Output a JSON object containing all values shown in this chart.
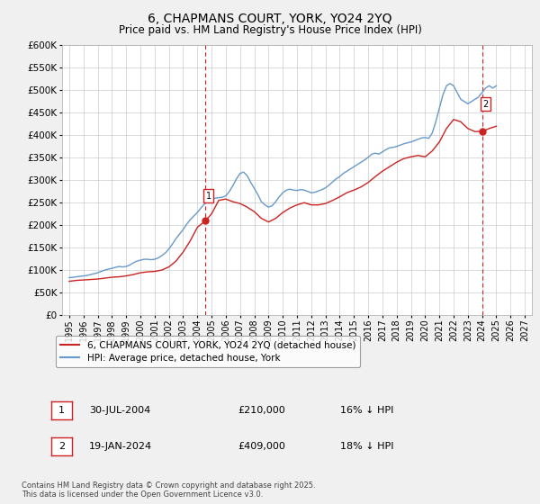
{
  "title": "6, CHAPMANS COURT, YORK, YO24 2YQ",
  "subtitle": "Price paid vs. HM Land Registry's House Price Index (HPI)",
  "title_fontsize": 10,
  "subtitle_fontsize": 8.5,
  "background_color": "#f0f0f0",
  "plot_background_color": "#ffffff",
  "grid_color": "#cccccc",
  "ylim": [
    0,
    600000
  ],
  "yticks": [
    0,
    50000,
    100000,
    150000,
    200000,
    250000,
    300000,
    350000,
    400000,
    450000,
    500000,
    550000,
    600000
  ],
  "xlim_start": 1994.5,
  "xlim_end": 2027.5,
  "xticks": [
    1995,
    1996,
    1997,
    1998,
    1999,
    2000,
    2001,
    2002,
    2003,
    2004,
    2005,
    2006,
    2007,
    2008,
    2009,
    2010,
    2011,
    2012,
    2013,
    2014,
    2015,
    2016,
    2017,
    2018,
    2019,
    2020,
    2021,
    2022,
    2023,
    2024,
    2025,
    2026,
    2027
  ],
  "hpi_color": "#6699cc",
  "price_color": "#cc2222",
  "marker_color": "#cc2222",
  "vline_color": "#cc2222",
  "marker1_x": 2004.58,
  "marker1_y": 210000,
  "marker2_x": 2024.05,
  "marker2_y": 409000,
  "sale1_label": "1",
  "sale2_label": "2",
  "sale1_date": "30-JUL-2004",
  "sale1_price": "£210,000",
  "sale1_hpi": "16% ↓ HPI",
  "sale2_date": "19-JAN-2024",
  "sale2_price": "£409,000",
  "sale2_hpi": "18% ↓ HPI",
  "legend_label1": "6, CHAPMANS COURT, YORK, YO24 2YQ (detached house)",
  "legend_label2": "HPI: Average price, detached house, York",
  "footer": "Contains HM Land Registry data © Crown copyright and database right 2025.\nThis data is licensed under the Open Government Licence v3.0.",
  "hpi_data_x": [
    1995.0,
    1995.25,
    1995.5,
    1995.75,
    1996.0,
    1996.25,
    1996.5,
    1996.75,
    1997.0,
    1997.25,
    1997.5,
    1997.75,
    1998.0,
    1998.25,
    1998.5,
    1998.75,
    1999.0,
    1999.25,
    1999.5,
    1999.75,
    2000.0,
    2000.25,
    2000.5,
    2000.75,
    2001.0,
    2001.25,
    2001.5,
    2001.75,
    2002.0,
    2002.25,
    2002.5,
    2002.75,
    2003.0,
    2003.25,
    2003.5,
    2003.75,
    2004.0,
    2004.25,
    2004.5,
    2004.75,
    2005.0,
    2005.25,
    2005.5,
    2005.75,
    2006.0,
    2006.25,
    2006.5,
    2006.75,
    2007.0,
    2007.25,
    2007.5,
    2007.75,
    2008.0,
    2008.25,
    2008.5,
    2008.75,
    2009.0,
    2009.25,
    2009.5,
    2009.75,
    2010.0,
    2010.25,
    2010.5,
    2010.75,
    2011.0,
    2011.25,
    2011.5,
    2011.75,
    2012.0,
    2012.25,
    2012.5,
    2012.75,
    2013.0,
    2013.25,
    2013.5,
    2013.75,
    2014.0,
    2014.25,
    2014.5,
    2014.75,
    2015.0,
    2015.25,
    2015.5,
    2015.75,
    2016.0,
    2016.25,
    2016.5,
    2016.75,
    2017.0,
    2017.25,
    2017.5,
    2017.75,
    2018.0,
    2018.25,
    2018.5,
    2018.75,
    2019.0,
    2019.25,
    2019.5,
    2019.75,
    2020.0,
    2020.25,
    2020.5,
    2020.75,
    2021.0,
    2021.25,
    2021.5,
    2021.75,
    2022.0,
    2022.25,
    2022.5,
    2022.75,
    2023.0,
    2023.25,
    2023.5,
    2023.75,
    2024.0,
    2024.25,
    2024.5,
    2024.75,
    2025.0
  ],
  "hpi_data_y": [
    83000,
    84000,
    85000,
    86000,
    87000,
    88000,
    90000,
    92000,
    94000,
    97000,
    100000,
    102000,
    104000,
    106000,
    108000,
    107000,
    108000,
    111000,
    116000,
    120000,
    122000,
    124000,
    124000,
    123000,
    124000,
    127000,
    132000,
    138000,
    147000,
    158000,
    170000,
    180000,
    190000,
    202000,
    212000,
    220000,
    228000,
    238000,
    247000,
    254000,
    258000,
    260000,
    261000,
    262000,
    265000,
    275000,
    288000,
    303000,
    315000,
    318000,
    310000,
    295000,
    282000,
    268000,
    252000,
    245000,
    240000,
    243000,
    252000,
    263000,
    272000,
    278000,
    280000,
    278000,
    277000,
    279000,
    278000,
    275000,
    272000,
    273000,
    276000,
    279000,
    283000,
    289000,
    296000,
    303000,
    308000,
    315000,
    320000,
    325000,
    330000,
    335000,
    340000,
    345000,
    351000,
    358000,
    360000,
    358000,
    363000,
    368000,
    372000,
    373000,
    375000,
    378000,
    381000,
    383000,
    385000,
    388000,
    391000,
    394000,
    395000,
    393000,
    405000,
    430000,
    460000,
    490000,
    510000,
    515000,
    510000,
    495000,
    480000,
    475000,
    470000,
    475000,
    480000,
    485000,
    495000,
    505000,
    510000,
    505000,
    510000
  ],
  "price_data_x": [
    1995.0,
    1995.5,
    1996.0,
    1996.5,
    1997.0,
    1997.5,
    1998.0,
    1998.5,
    1999.0,
    1999.5,
    2000.0,
    2000.5,
    2001.0,
    2001.5,
    2002.0,
    2002.5,
    2003.0,
    2003.5,
    2004.0,
    2004.58,
    2005.0,
    2005.5,
    2006.0,
    2006.5,
    2007.0,
    2007.5,
    2008.0,
    2008.5,
    2009.0,
    2009.5,
    2010.0,
    2010.5,
    2011.0,
    2011.5,
    2012.0,
    2012.5,
    2013.0,
    2013.5,
    2014.0,
    2014.5,
    2015.0,
    2015.5,
    2016.0,
    2016.5,
    2017.0,
    2017.5,
    2018.0,
    2018.5,
    2019.0,
    2019.5,
    2020.0,
    2020.5,
    2021.0,
    2021.5,
    2022.0,
    2022.5,
    2023.0,
    2023.5,
    2024.05,
    2024.5,
    2025.0
  ],
  "price_data_y": [
    75000,
    77000,
    78000,
    79000,
    80000,
    82000,
    84000,
    85000,
    87000,
    90000,
    94000,
    96000,
    97000,
    100000,
    107000,
    120000,
    140000,
    165000,
    195000,
    210000,
    225000,
    255000,
    258000,
    252000,
    248000,
    240000,
    230000,
    215000,
    207000,
    215000,
    228000,
    238000,
    245000,
    250000,
    245000,
    245000,
    248000,
    255000,
    263000,
    272000,
    278000,
    285000,
    295000,
    308000,
    320000,
    330000,
    340000,
    348000,
    352000,
    355000,
    352000,
    365000,
    385000,
    415000,
    435000,
    430000,
    415000,
    408000,
    409000,
    415000,
    420000
  ]
}
